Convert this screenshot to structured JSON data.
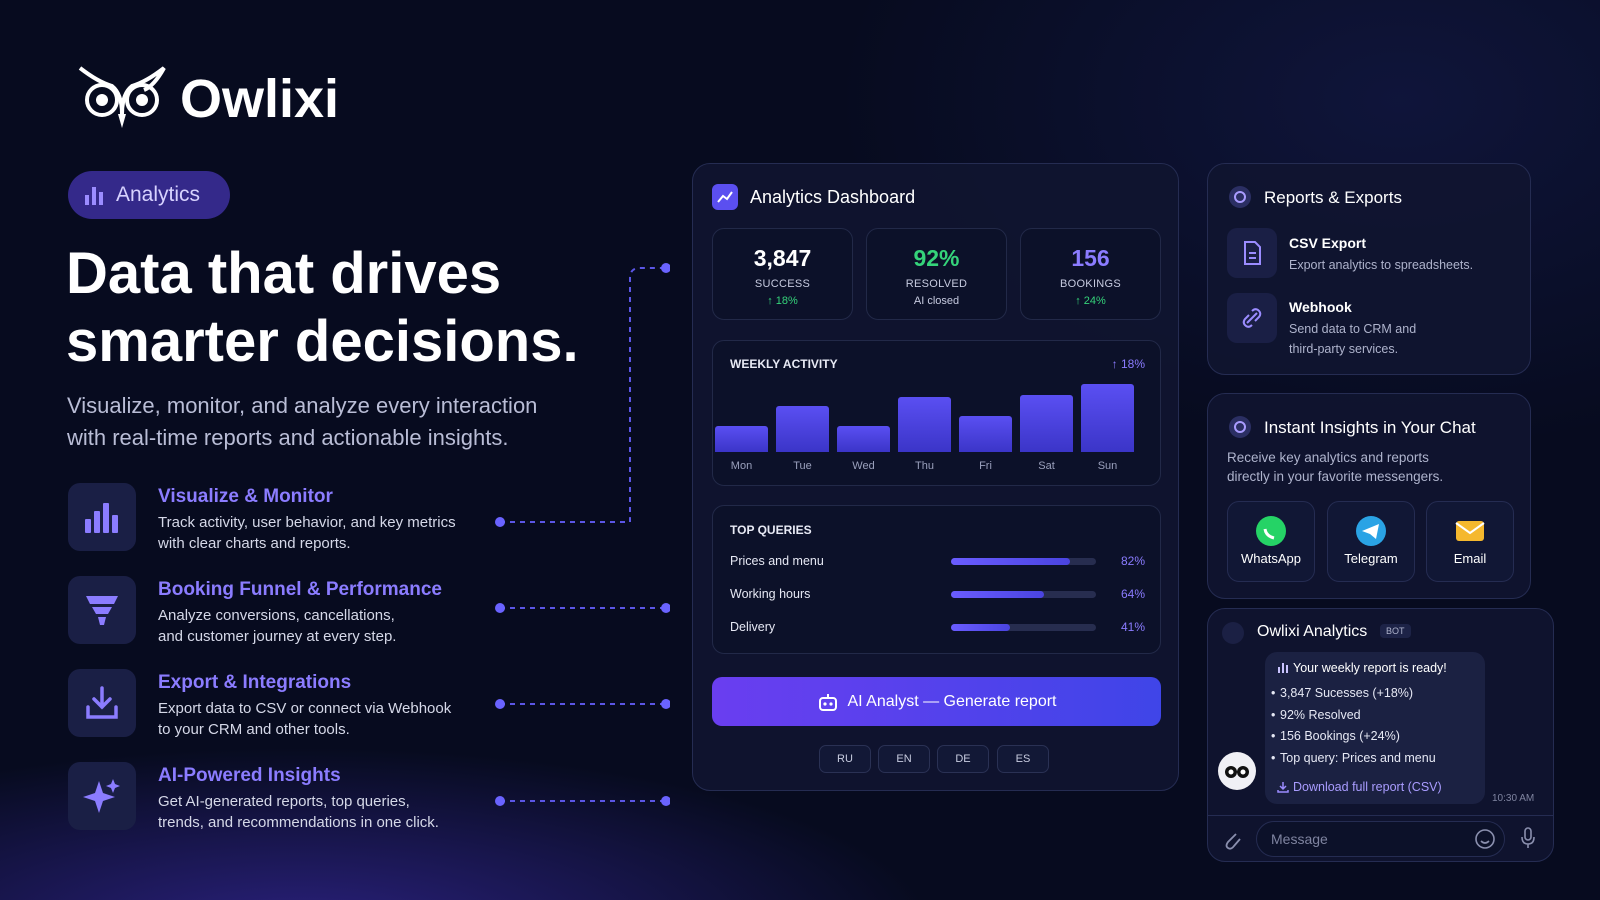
{
  "brand": {
    "name": "Owlixi"
  },
  "hero": {
    "badge": "Analytics",
    "title_lines": [
      "Data that drives",
      "smarter decisions."
    ],
    "subtitle_lines": [
      "Visualize, monitor, and analyze every interaction",
      "with real-time reports and actionable insights."
    ]
  },
  "features": [
    {
      "title": "Visualize & Monitor",
      "lines": [
        "Track activity, user behavior, and key metrics",
        "with clear charts and reports."
      ]
    },
    {
      "title": "Booking Funnel & Performance",
      "lines": [
        "Analyze conversions, cancellations,",
        "and customer journey at every step."
      ]
    },
    {
      "title": "Export & Integrations",
      "lines": [
        "Export data to CSV or connect via Webhook",
        "to your CRM and other tools."
      ]
    },
    {
      "title": "AI-Powered Insights",
      "lines": [
        "Get AI-generated reports, top queries,",
        "trends, and recommendations in one click."
      ]
    }
  ],
  "dashboard": {
    "title": "Analytics Dashboard",
    "stats": [
      {
        "value": "3,847",
        "label": "SUCCESS",
        "note": "↑ 18%"
      },
      {
        "value": "92%",
        "label": "RESOLVED",
        "note": "AI closed"
      },
      {
        "value": "156",
        "label": "BOOKINGS",
        "note": "↑ 24%"
      }
    ],
    "weekly": {
      "title": "WEEKLY ACTIVITY",
      "change": "↑ 18%",
      "categories": [
        "Mon",
        "Tue",
        "Wed",
        "Thu",
        "Fri",
        "Sat",
        "Sun"
      ],
      "values": [
        26,
        46,
        26,
        55,
        36,
        57,
        68
      ]
    },
    "queries": {
      "title": "TOP QUERIES",
      "items": [
        {
          "name": "Prices and menu",
          "value": 82,
          "label": "82%"
        },
        {
          "name": "Working hours",
          "value": 64,
          "label": "64%"
        },
        {
          "name": "Delivery",
          "value": 41,
          "label": "41%"
        }
      ]
    },
    "button": "AI Analyst — Generate report",
    "languages": [
      "RU",
      "EN",
      "DE",
      "ES"
    ]
  },
  "reports": {
    "title": "Reports & Exports",
    "items": [
      {
        "title": "CSV Export",
        "lines": [
          "Export analytics to spreadsheets."
        ]
      },
      {
        "title": "Webhook",
        "lines": [
          "Send data to CRM and",
          "third-party services."
        ]
      }
    ]
  },
  "insights": {
    "title": "Instant Insights in Your Chat",
    "lines": [
      "Receive key analytics and reports",
      "directly in your favorite messengers."
    ],
    "messengers": [
      "WhatsApp",
      "Telegram",
      "Email"
    ]
  },
  "chat": {
    "name": "Owlixi Analytics",
    "tag": "BOT",
    "heading": "Your weekly report is ready!",
    "bullets": [
      "3,847 Sucesses (+18%)",
      "92% Resolved",
      "156 Bookings (+24%)",
      "Top query: Prices and menu"
    ],
    "link": "Download full report (CSV)",
    "time": "10:30 AM",
    "placeholder": "Message"
  }
}
